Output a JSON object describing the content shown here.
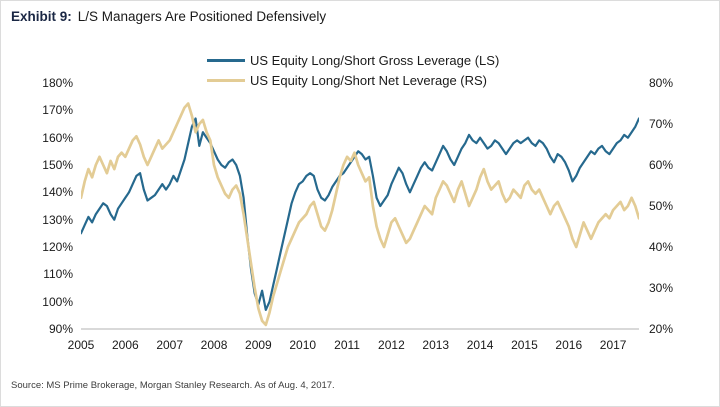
{
  "title": {
    "prefix": "Exhibit 9:",
    "text": "L/S Managers Are Positioned Defensively"
  },
  "source": "Source: MS Prime Brokerage, Morgan Stanley Research. As of Aug. 4, 2017.",
  "colors": {
    "gross_line": "#26698e",
    "net_line": "#e3cc95",
    "axis_line": "#b3b3b3",
    "title_prefix": "#1a2744"
  },
  "chart_data": {
    "type": "line",
    "title": "L/S Managers Are Positioned Defensively",
    "x_start": "2005-01",
    "x_end": "2017-08",
    "frequency": "monthly (values estimated from plot)",
    "x_tick_labels": [
      "2005",
      "2006",
      "2007",
      "2008",
      "2009",
      "2010",
      "2011",
      "2012",
      "2013",
      "2014",
      "2015",
      "2016",
      "2017"
    ],
    "left_axis": {
      "min": 90,
      "max": 180,
      "tick_labels": [
        "180%",
        "170%",
        "160%",
        "150%",
        "140%",
        "130%",
        "120%",
        "110%",
        "100%",
        "90%"
      ]
    },
    "right_axis": {
      "min": 20,
      "max": 80,
      "tick_labels": [
        "80%",
        "70%",
        "60%",
        "50%",
        "40%",
        "30%",
        "20%"
      ]
    },
    "grid": false,
    "legend_position": "top-center",
    "series": [
      {
        "name": "US Equity Long/Short Gross Leverage (LS)",
        "axis": "left",
        "color": "#26698e",
        "values": [
          125,
          128,
          131,
          129,
          132,
          134,
          136,
          135,
          132,
          130,
          134,
          136,
          138,
          140,
          143,
          146,
          147,
          141,
          137,
          138,
          139,
          141,
          143,
          141,
          143,
          146,
          144,
          148,
          152,
          158,
          164,
          167,
          157,
          162,
          160,
          158,
          155,
          152,
          150,
          149,
          151,
          152,
          150,
          146,
          138,
          124,
          112,
          103,
          99,
          104,
          97,
          100,
          106,
          112,
          118,
          124,
          130,
          136,
          140,
          143,
          144,
          146,
          147,
          146,
          141,
          138,
          137,
          139,
          142,
          144,
          146,
          147,
          149,
          151,
          153,
          155,
          154,
          152,
          153,
          146,
          138,
          135,
          137,
          139,
          143,
          146,
          149,
          147,
          143,
          140,
          143,
          146,
          149,
          151,
          149,
          148,
          151,
          154,
          157,
          155,
          152,
          150,
          153,
          156,
          158,
          161,
          159,
          158,
          160,
          158,
          156,
          157,
          159,
          158,
          156,
          154,
          156,
          158,
          159,
          158,
          159,
          160,
          158,
          157,
          159,
          158,
          156,
          153,
          151,
          154,
          153,
          151,
          148,
          144,
          146,
          149,
          151,
          153,
          155,
          154,
          156,
          157,
          155,
          154,
          156,
          158,
          159,
          161,
          160,
          162,
          164,
          167
        ]
      },
      {
        "name": "US Equity Long/Short Net Leverage (RS)",
        "axis": "right",
        "color": "#e3cc95",
        "values": [
          52,
          56,
          59,
          57,
          60,
          62,
          60,
          58,
          61,
          59,
          62,
          63,
          62,
          64,
          66,
          67,
          65,
          62,
          60,
          62,
          64,
          66,
          64,
          65,
          66,
          68,
          70,
          72,
          74,
          75,
          72,
          68,
          70,
          71,
          68,
          66,
          60,
          57,
          55,
          53,
          52,
          54,
          55,
          53,
          48,
          42,
          36,
          30,
          25,
          22,
          21,
          24,
          28,
          31,
          34,
          37,
          40,
          42,
          44,
          46,
          47,
          48,
          50,
          51,
          48,
          45,
          44,
          46,
          49,
          53,
          57,
          60,
          62,
          61,
          63,
          60,
          58,
          56,
          57,
          50,
          45,
          42,
          40,
          43,
          46,
          47,
          45,
          43,
          41,
          42,
          44,
          46,
          48,
          50,
          49,
          48,
          52,
          54,
          56,
          55,
          53,
          51,
          54,
          56,
          53,
          50,
          52,
          54,
          57,
          59,
          56,
          54,
          55,
          56,
          53,
          51,
          52,
          54,
          53,
          52,
          55,
          56,
          54,
          53,
          54,
          52,
          50,
          48,
          50,
          51,
          49,
          47,
          45,
          42,
          40,
          43,
          46,
          44,
          42,
          44,
          46,
          47,
          48,
          47,
          49,
          50,
          51,
          49,
          50,
          52,
          50,
          47
        ]
      }
    ]
  }
}
